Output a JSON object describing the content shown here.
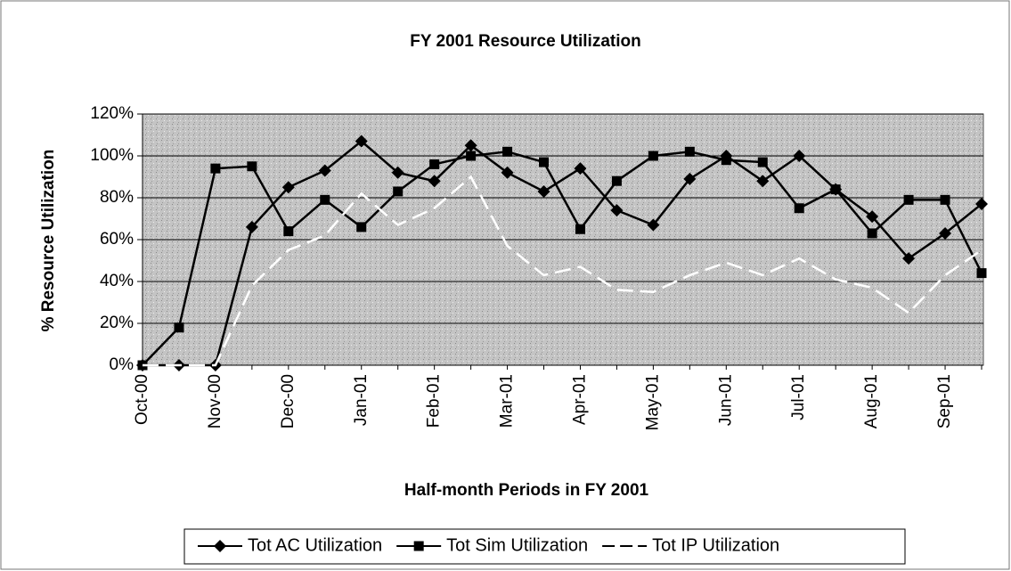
{
  "chart_data": {
    "type": "line",
    "title": "FY 2001 Resource Utilization",
    "xlabel": "Half-month Periods in FY 2001",
    "ylabel": "% Resource Utilization",
    "categories": [
      "Oct-00",
      null,
      "Nov-00",
      null,
      "Dec-00",
      null,
      "Jan-01",
      null,
      "Feb-01",
      null,
      "Mar-01",
      null,
      "Apr-01",
      null,
      "May-01",
      null,
      "Jun-01",
      null,
      "Jul-01",
      null,
      "Aug-01",
      null,
      "Sep-01",
      null
    ],
    "series": [
      {
        "name": "Tot AC Utilization",
        "color": "#000000",
        "marker": "diamond",
        "dash": false,
        "values": [
          0,
          0,
          0,
          66,
          85,
          93,
          107,
          92,
          88,
          105,
          92,
          83,
          94,
          74,
          67,
          89,
          100,
          88,
          100,
          84,
          71,
          51,
          63,
          77
        ]
      },
      {
        "name": "Tot Sim Utilization",
        "color": "#000000",
        "marker": "square",
        "dash": false,
        "values": [
          0,
          18,
          94,
          95,
          64,
          79,
          66,
          83,
          96,
          100,
          102,
          97,
          65,
          88,
          100,
          102,
          98,
          97,
          75,
          84,
          63,
          79,
          79,
          44
        ]
      },
      {
        "name": "Tot IP Utilization",
        "color": "#ffffff",
        "marker": "none",
        "dash": true,
        "values": [
          0,
          0,
          0,
          38,
          55,
          62,
          82,
          67,
          75,
          90,
          57,
          43,
          47,
          36,
          35,
          43,
          49,
          43,
          51,
          41,
          37,
          25,
          43,
          55
        ]
      }
    ],
    "ylim": [
      0,
      120
    ],
    "yticks": [
      {
        "value": 0,
        "label": "0%"
      },
      {
        "value": 20,
        "label": "20%"
      },
      {
        "value": 40,
        "label": "40%"
      },
      {
        "value": 60,
        "label": "60%"
      },
      {
        "value": 80,
        "label": "80%"
      },
      {
        "value": 100,
        "label": "100%"
      },
      {
        "value": 120,
        "label": "120%"
      }
    ],
    "grid": true,
    "legend": "bottom"
  }
}
